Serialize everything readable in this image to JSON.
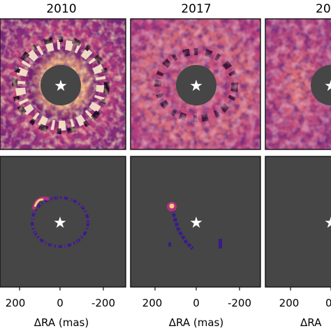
{
  "figure": {
    "columns": [
      {
        "title": "2010",
        "x_ticks": [
          "200",
          "0",
          "-200"
        ],
        "x_label": "ΔRA (mas)"
      },
      {
        "title": "2017",
        "x_ticks": [
          "200",
          "0",
          "-200"
        ],
        "x_label": "ΔRA (mas)"
      },
      {
        "title": "20",
        "x_ticks": [
          "200",
          "0"
        ],
        "x_label": "ΔRA"
      }
    ],
    "star_symbol": "★",
    "colors": {
      "masked_background": "#464646",
      "colormap_dark": "#2a0a3d",
      "colormap_mid": "#b0327a",
      "colormap_light": "#f7c982",
      "colormap_white": "#fff7e8",
      "low_intensity": "#3a1b8a"
    }
  }
}
